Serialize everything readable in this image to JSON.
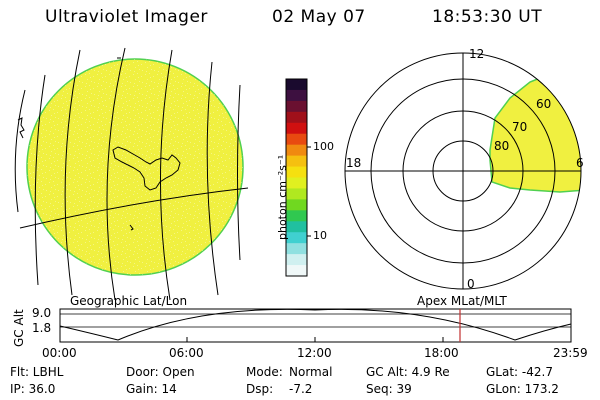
{
  "header": {
    "title": "Ultraviolet Imager",
    "date": "02 May 07",
    "time": "18:53:30 UT"
  },
  "colorbar": {
    "label": "photon cm⁻²s⁻¹",
    "ticks": [
      "100",
      "10"
    ],
    "colors": [
      "#1a0a2e",
      "#3d1040",
      "#6a1030",
      "#a0101a",
      "#d01010",
      "#e84a10",
      "#f08a10",
      "#f5c010",
      "#f5e010",
      "#e0f020",
      "#b0e820",
      "#70d820",
      "#30c850",
      "#20c0a0",
      "#40d0d0",
      "#90e0e0",
      "#d0f0f0",
      "#f0f8f8"
    ]
  },
  "polar_plot": {
    "labels": [
      "12",
      "18",
      "6",
      "0",
      "80",
      "70",
      "60"
    ]
  },
  "timeline": {
    "left_label": "Geographic Lat/Lon",
    "right_label": "Apex MLat/MLT",
    "y_axis_label": "GC Alt",
    "y_ticks": [
      "9.0",
      "1.8"
    ],
    "x_ticks": [
      "00:00",
      "06:00",
      "12:00",
      "18:00",
      "23:59"
    ],
    "marker_time": "18:53:30"
  },
  "info": {
    "row1": {
      "filter": "Flt: LBHL",
      "door": "Door: Open",
      "mode_label": "Mode:",
      "mode_value": "Normal",
      "gc_alt": "GC Alt: 4.9 Re",
      "glat": "GLat: -42.7"
    },
    "row2": {
      "ip": "IP: 36.0",
      "gain": "Gain: 14",
      "dsp_label": "Dsp:",
      "dsp_value": "-7.2",
      "seq": "Seq: 39",
      "glon": "GLon: 173.2"
    }
  },
  "colors": {
    "earth_fill": "#f0f040",
    "earth_edge": "#50d050",
    "marker": "#c03030"
  }
}
